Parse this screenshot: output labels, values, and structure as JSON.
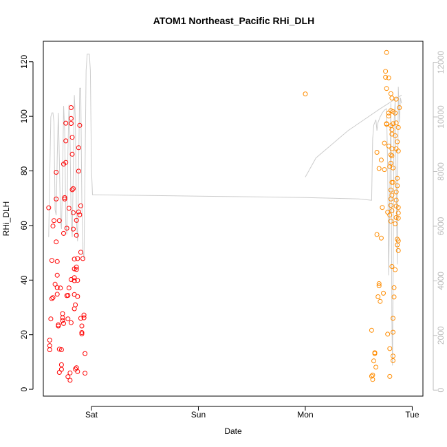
{
  "chart_data": {
    "type": "scatter",
    "title": "ATOM1 Northeast_Pacific RHi_DLH",
    "xlabel": "Date",
    "ylabel": "RHi_DLH",
    "x_ticks": [
      {
        "day": 1.0,
        "label": "Sat"
      },
      {
        "day": 2.0,
        "label": "Sun"
      },
      {
        "day": 3.0,
        "label": "Mon"
      },
      {
        "day": 4.0,
        "label": "Tue"
      }
    ],
    "xlim_days": [
      0.55,
      4.1
    ],
    "ylim": [
      -2.5,
      127.5
    ],
    "y_ticks": [
      0,
      20,
      40,
      60,
      80,
      100,
      120
    ],
    "y2lim": [
      -220,
      12770
    ],
    "y2_ticks": [
      0,
      2000,
      4000,
      6000,
      8000,
      10000,
      12000
    ],
    "y2_color": "#bbbbbb",
    "series": [
      {
        "color": "#ff0000",
        "marker": "open-circle",
        "points": [
          [
            0.6,
            66.5
          ],
          [
            0.61,
            18
          ],
          [
            0.61,
            16
          ],
          [
            0.61,
            14.5
          ],
          [
            0.62,
            25.8
          ],
          [
            0.63,
            47.2
          ],
          [
            0.63,
            33.2
          ],
          [
            0.64,
            33.6
          ],
          [
            0.64,
            59.8
          ],
          [
            0.65,
            61.8
          ],
          [
            0.66,
            38.5
          ],
          [
            0.67,
            79.5
          ],
          [
            0.67,
            69.7
          ],
          [
            0.67,
            54
          ],
          [
            0.68,
            41.8
          ],
          [
            0.68,
            46.8
          ],
          [
            0.68,
            37.2
          ],
          [
            0.68,
            34.8
          ],
          [
            0.69,
            23.6
          ],
          [
            0.69,
            23.2
          ],
          [
            0.7,
            14.7
          ],
          [
            0.7,
            6.2
          ],
          [
            0.7,
            61.8
          ],
          [
            0.71,
            37.1
          ],
          [
            0.72,
            14.5
          ],
          [
            0.72,
            9
          ],
          [
            0.72,
            7.3
          ],
          [
            0.73,
            25.2
          ],
          [
            0.73,
            27.7
          ],
          [
            0.73,
            26.2
          ],
          [
            0.74,
            82.5
          ],
          [
            0.74,
            57.1
          ],
          [
            0.74,
            24.1
          ],
          [
            0.75,
            70.2
          ],
          [
            0.75,
            69.7
          ],
          [
            0.76,
            91
          ],
          [
            0.76,
            97.5
          ],
          [
            0.76,
            83.1
          ],
          [
            0.77,
            59
          ],
          [
            0.77,
            34.3
          ],
          [
            0.78,
            34.4
          ],
          [
            0.78,
            25.8
          ],
          [
            0.78,
            4.6
          ],
          [
            0.79,
            66.3
          ],
          [
            0.79,
            37.1
          ],
          [
            0.8,
            3.3
          ],
          [
            0.8,
            6
          ],
          [
            0.81,
            40.2
          ],
          [
            0.81,
            24.4
          ],
          [
            0.81,
            97.4
          ],
          [
            0.81,
            99.2
          ],
          [
            0.81,
            103.2
          ],
          [
            0.82,
            92.3
          ],
          [
            0.82,
            86.1
          ],
          [
            0.82,
            73.1
          ],
          [
            0.83,
            73.5
          ],
          [
            0.83,
            64.7
          ],
          [
            0.83,
            58.7
          ],
          [
            0.84,
            40.9
          ],
          [
            0.84,
            39.8
          ],
          [
            0.84,
            47.7
          ],
          [
            0.84,
            44.1
          ],
          [
            0.84,
            34.7
          ],
          [
            0.84,
            29.5
          ],
          [
            0.85,
            7.4
          ],
          [
            0.85,
            30.9
          ],
          [
            0.86,
            56.4
          ],
          [
            0.86,
            61.9
          ],
          [
            0.86,
            44.8
          ],
          [
            0.86,
            43.9
          ],
          [
            0.86,
            7.9
          ],
          [
            0.87,
            47.9
          ],
          [
            0.87,
            39.9
          ],
          [
            0.87,
            34
          ],
          [
            0.87,
            6.5
          ],
          [
            0.88,
            88.5
          ],
          [
            0.88,
            79.9
          ],
          [
            0.88,
            65
          ],
          [
            0.89,
            63.9
          ],
          [
            0.89,
            96.7
          ],
          [
            0.9,
            67.2
          ],
          [
            0.9,
            50.2
          ],
          [
            0.9,
            26
          ],
          [
            0.91,
            20.8
          ],
          [
            0.91,
            20.3
          ],
          [
            0.91,
            23.2
          ],
          [
            0.92,
            47.9
          ],
          [
            0.93,
            26.2
          ],
          [
            0.93,
            27.2
          ],
          [
            0.94,
            5.9
          ],
          [
            0.94,
            13.1
          ]
        ]
      },
      {
        "color": "#ff8c00",
        "marker": "open-circle",
        "points": [
          [
            3.0,
            108.2
          ],
          [
            3.62,
            21.6
          ],
          [
            3.62,
            4.8
          ],
          [
            3.63,
            5.2
          ],
          [
            3.63,
            3.6
          ],
          [
            3.64,
            10.4
          ],
          [
            3.65,
            13.1
          ],
          [
            3.65,
            13.4
          ],
          [
            3.66,
            8.1
          ],
          [
            3.67,
            56.7
          ],
          [
            3.67,
            86.8
          ],
          [
            3.68,
            33.9
          ],
          [
            3.69,
            37.9
          ],
          [
            3.69,
            38.7
          ],
          [
            3.69,
            80.9
          ],
          [
            3.7,
            32.2
          ],
          [
            3.71,
            55.4
          ],
          [
            3.71,
            84
          ],
          [
            3.72,
            66.6
          ],
          [
            3.73,
            35.2
          ],
          [
            3.74,
            90.2
          ],
          [
            3.74,
            80.5
          ],
          [
            3.75,
            116.5
          ],
          [
            3.75,
            114.3
          ],
          [
            3.76,
            123.4
          ],
          [
            3.76,
            110.2
          ],
          [
            3.76,
            97.3
          ],
          [
            3.76,
            97.1
          ],
          [
            3.77,
            64.9
          ],
          [
            3.77,
            20.2
          ],
          [
            3.78,
            114.1
          ],
          [
            3.78,
            101.2
          ],
          [
            3.78,
            100.1
          ],
          [
            3.78,
            89.1
          ],
          [
            3.79,
            81.6
          ],
          [
            3.79,
            63.8
          ],
          [
            3.79,
            14.9
          ],
          [
            3.79,
            4.7
          ],
          [
            3.8,
            108.3
          ],
          [
            3.8,
            102.1
          ],
          [
            3.8,
            96.6
          ],
          [
            3.8,
            85.9
          ],
          [
            3.8,
            82.8
          ],
          [
            3.8,
            73
          ],
          [
            3.8,
            69.7
          ],
          [
            3.8,
            67.4
          ],
          [
            3.8,
            61.6
          ],
          [
            3.81,
            106.7
          ],
          [
            3.81,
            95.1
          ],
          [
            3.81,
            93.5
          ],
          [
            3.81,
            88.1
          ],
          [
            3.81,
            85.5
          ],
          [
            3.81,
            75.8
          ],
          [
            3.81,
            71.1
          ],
          [
            3.81,
            65.4
          ],
          [
            3.81,
            45
          ],
          [
            3.82,
            101.7
          ],
          [
            3.82,
            97.3
          ],
          [
            3.82,
            81.1
          ],
          [
            3.82,
            75.8
          ],
          [
            3.82,
            26
          ],
          [
            3.82,
            20.9
          ],
          [
            3.82,
            12.2
          ],
          [
            3.82,
            10.5
          ],
          [
            3.83,
            37.2
          ],
          [
            3.83,
            33.8
          ],
          [
            3.84,
            101.2
          ],
          [
            3.84,
            92.9
          ],
          [
            3.84,
            60.6
          ],
          [
            3.84,
            43.8
          ],
          [
            3.85,
            106.3
          ],
          [
            3.85,
            97.6
          ],
          [
            3.85,
            88.1
          ],
          [
            3.85,
            72.3
          ],
          [
            3.85,
            69.3
          ],
          [
            3.85,
            67.1
          ],
          [
            3.85,
            62.9
          ],
          [
            3.86,
            90.7
          ],
          [
            3.86,
            77.3
          ],
          [
            3.86,
            74.6
          ],
          [
            3.86,
            55
          ],
          [
            3.86,
            52.9
          ],
          [
            3.87,
            95.9
          ],
          [
            3.87,
            87.3
          ],
          [
            3.87,
            66.6
          ],
          [
            3.87,
            64.6
          ],
          [
            3.87,
            62.7
          ],
          [
            3.87,
            54.4
          ],
          [
            3.87,
            50.8
          ],
          [
            3.88,
            103.2
          ]
        ]
      },
      {
        "name": "",
        "color": "#cccccc",
        "type": "line",
        "axis": "right",
        "segments": [
          [
            [
              0.6,
              5600
            ],
            [
              0.61,
              7800
            ],
            [
              0.62,
              10000
            ],
            [
              0.63,
              10150
            ],
            [
              0.64,
              10150
            ],
            [
              0.65,
              9800
            ],
            [
              0.66,
              6600
            ],
            [
              0.67,
              6400
            ],
            [
              0.68,
              8500
            ],
            [
              0.69,
              10150
            ],
            [
              0.7,
              8500
            ],
            [
              0.71,
              6200
            ],
            [
              0.72,
              5900
            ],
            [
              0.73,
              7800
            ],
            [
              0.74,
              10400
            ],
            [
              0.75,
              9500
            ],
            [
              0.76,
              6100
            ],
            [
              0.77,
              5700
            ],
            [
              0.78,
              8800
            ],
            [
              0.79,
              10450
            ],
            [
              0.8,
              9200
            ],
            [
              0.81,
              6300
            ],
            [
              0.82,
              5600
            ],
            [
              0.83,
              7900
            ],
            [
              0.84,
              10800
            ],
            [
              0.85,
              9900
            ],
            [
              0.86,
              6200
            ],
            [
              0.87,
              5450
            ],
            [
              0.88,
              8200
            ],
            [
              0.89,
              11050
            ],
            [
              0.9,
              11050
            ],
            [
              0.91,
              6900
            ],
            [
              0.92,
              5100
            ],
            [
              0.93,
              4800
            ],
            [
              0.94,
              7900
            ],
            [
              0.95,
              11700
            ],
            [
              0.96,
              12300
            ],
            [
              0.97,
              12300
            ],
            [
              0.98,
              12300
            ],
            [
              0.99,
              11700
            ],
            [
              1.0,
              8100
            ],
            [
              1.01,
              7150
            ],
            [
              1.02,
              7150
            ],
            [
              2.0,
              7100
            ],
            [
              3.0,
              7050
            ],
            [
              3.5,
              7000
            ],
            [
              3.62,
              6950
            ],
            [
              3.63,
              9200
            ],
            [
              3.64,
              9700
            ],
            [
              3.65,
              9800
            ],
            [
              3.66,
              9900
            ],
            [
              3.67,
              9500
            ],
            [
              3.68,
              9800
            ],
            [
              3.7,
              10000
            ],
            [
              3.72,
              10150
            ],
            [
              3.74,
              10250
            ],
            [
              3.76,
              10300
            ],
            [
              3.77,
              8200
            ],
            [
              3.78,
              4200
            ],
            [
              3.79,
              7200
            ],
            [
              3.8,
              10500
            ],
            [
              3.81,
              2500
            ],
            [
              3.815,
              900
            ],
            [
              3.82,
              3500
            ],
            [
              3.83,
              9800
            ],
            [
              3.84,
              10600
            ],
            [
              3.85,
              7600
            ],
            [
              3.86,
              4600
            ],
            [
              3.87,
              11100
            ],
            [
              3.88,
              9800
            ],
            [
              3.89,
              10700
            ],
            [
              3.9,
              10500
            ]
          ],
          [
            [
              3.0,
              7800
            ],
            [
              3.1,
              8500
            ],
            [
              3.4,
              9500
            ],
            [
              3.7,
              10300
            ],
            [
              3.9,
              10800
            ]
          ]
        ]
      }
    ]
  }
}
